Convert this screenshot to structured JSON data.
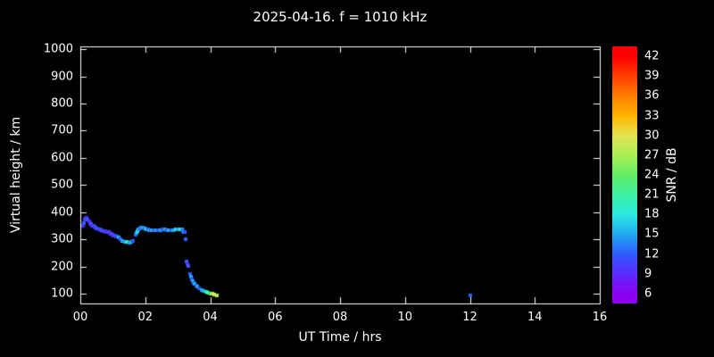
{
  "title": "2025-04-16. f = 1010 kHz",
  "chart_data": {
    "type": "scatter",
    "title": "2025-04-16. f = 1010 kHz",
    "xlabel": "UT Time / hrs",
    "ylabel": "Virtual height / km",
    "colorbar_label": "SNR / dB",
    "xlim": [
      0,
      16
    ],
    "ylim": [
      100,
      1000
    ],
    "grid": false,
    "background": "#000000",
    "axis_color": "#ffffff",
    "xticks": [
      "00",
      "02",
      "04",
      "06",
      "08",
      "10",
      "12",
      "14",
      "16"
    ],
    "yticks": [
      100,
      200,
      300,
      400,
      500,
      600,
      700,
      800,
      900,
      1000
    ],
    "colorbar_ticks": [
      6,
      9,
      12,
      15,
      18,
      21,
      24,
      27,
      30,
      33,
      36,
      39,
      42
    ],
    "palette": [
      {
        "snr": 6,
        "color": "#8c00f0"
      },
      {
        "snr": 9,
        "color": "#5b2bff"
      },
      {
        "snr": 12,
        "color": "#2f5bff"
      },
      {
        "snr": 15,
        "color": "#1fa8f0"
      },
      {
        "snr": 18,
        "color": "#2ce8e0"
      },
      {
        "snr": 21,
        "color": "#3cf0a5"
      },
      {
        "snr": 24,
        "color": "#62ee62"
      },
      {
        "snr": 27,
        "color": "#a9ee55"
      },
      {
        "snr": 30,
        "color": "#e3e34f"
      },
      {
        "snr": 33,
        "color": "#ffb300"
      },
      {
        "snr": 36,
        "color": "#ff7d00"
      },
      {
        "snr": 39,
        "color": "#ff3c00"
      },
      {
        "snr": 42,
        "color": "#ff0000"
      }
    ],
    "points": [
      [
        0.07,
        352,
        9
      ],
      [
        0.1,
        360,
        12
      ],
      [
        0.13,
        372,
        9
      ],
      [
        0.17,
        378,
        12
      ],
      [
        0.2,
        380,
        9
      ],
      [
        0.23,
        374,
        12
      ],
      [
        0.27,
        366,
        9
      ],
      [
        0.3,
        360,
        9
      ],
      [
        0.33,
        356,
        12
      ],
      [
        0.37,
        352,
        9
      ],
      [
        0.4,
        350,
        12
      ],
      [
        0.43,
        347,
        9
      ],
      [
        0.47,
        344,
        12
      ],
      [
        0.5,
        342,
        9
      ],
      [
        0.53,
        340,
        12
      ],
      [
        0.57,
        338,
        9
      ],
      [
        0.6,
        336,
        12
      ],
      [
        0.63,
        335,
        9
      ],
      [
        0.67,
        333,
        12
      ],
      [
        0.7,
        331,
        9
      ],
      [
        0.73,
        332,
        12
      ],
      [
        0.77,
        330,
        9
      ],
      [
        0.8,
        329,
        12
      ],
      [
        0.83,
        327,
        9
      ],
      [
        0.87,
        326,
        12
      ],
      [
        0.9,
        324,
        9
      ],
      [
        0.93,
        322,
        12
      ],
      [
        0.97,
        320,
        9
      ],
      [
        1.0,
        318,
        12
      ],
      [
        1.03,
        316,
        9
      ],
      [
        1.07,
        314,
        12
      ],
      [
        1.1,
        312,
        9
      ],
      [
        1.13,
        310,
        12
      ],
      [
        1.17,
        308,
        15
      ],
      [
        1.23,
        302,
        12
      ],
      [
        1.3,
        296,
        15
      ],
      [
        1.37,
        292,
        15
      ],
      [
        1.43,
        290,
        18
      ],
      [
        1.5,
        289,
        15
      ],
      [
        1.57,
        291,
        15
      ],
      [
        1.63,
        294,
        12
      ],
      [
        1.7,
        318,
        12
      ],
      [
        1.73,
        325,
        15
      ],
      [
        1.77,
        331,
        18
      ],
      [
        1.8,
        336,
        15
      ],
      [
        1.83,
        340,
        12
      ],
      [
        1.87,
        343,
        15
      ],
      [
        1.9,
        345,
        12
      ],
      [
        1.93,
        344,
        15
      ],
      [
        1.97,
        342,
        12
      ],
      [
        2.0,
        340,
        15
      ],
      [
        2.03,
        338,
        18
      ],
      [
        2.07,
        337,
        15
      ],
      [
        2.1,
        336,
        12
      ],
      [
        2.13,
        335,
        15
      ],
      [
        2.17,
        334,
        12
      ],
      [
        2.2,
        334,
        15
      ],
      [
        2.27,
        333,
        12
      ],
      [
        2.33,
        334,
        15
      ],
      [
        2.4,
        334,
        12
      ],
      [
        2.47,
        335,
        15
      ],
      [
        2.53,
        336,
        12
      ],
      [
        2.6,
        336,
        15
      ],
      [
        2.67,
        335,
        12
      ],
      [
        2.73,
        334,
        15
      ],
      [
        2.8,
        334,
        12
      ],
      [
        2.87,
        335,
        15
      ],
      [
        2.93,
        336,
        18
      ],
      [
        3.0,
        337,
        15
      ],
      [
        3.07,
        338,
        18
      ],
      [
        3.13,
        336,
        15
      ],
      [
        3.17,
        332,
        12
      ],
      [
        3.2,
        329,
        15
      ],
      [
        3.23,
        326,
        12
      ],
      [
        3.25,
        300,
        12
      ],
      [
        3.28,
        218,
        12
      ],
      [
        3.3,
        210,
        9
      ],
      [
        3.33,
        203,
        12
      ],
      [
        3.37,
        172,
        12
      ],
      [
        3.4,
        163,
        15
      ],
      [
        3.43,
        155,
        12
      ],
      [
        3.47,
        148,
        15
      ],
      [
        3.5,
        142,
        12
      ],
      [
        3.53,
        136,
        15
      ],
      [
        3.57,
        130,
        12
      ],
      [
        3.6,
        126,
        15
      ],
      [
        3.67,
        120,
        12
      ],
      [
        3.73,
        115,
        15
      ],
      [
        3.8,
        111,
        15
      ],
      [
        3.87,
        108,
        18
      ],
      [
        3.93,
        105,
        21
      ],
      [
        4.0,
        102,
        24
      ],
      [
        4.07,
        100,
        27
      ],
      [
        4.13,
        98,
        30
      ],
      [
        4.2,
        96,
        27
      ],
      [
        12.0,
        95,
        12
      ]
    ]
  }
}
